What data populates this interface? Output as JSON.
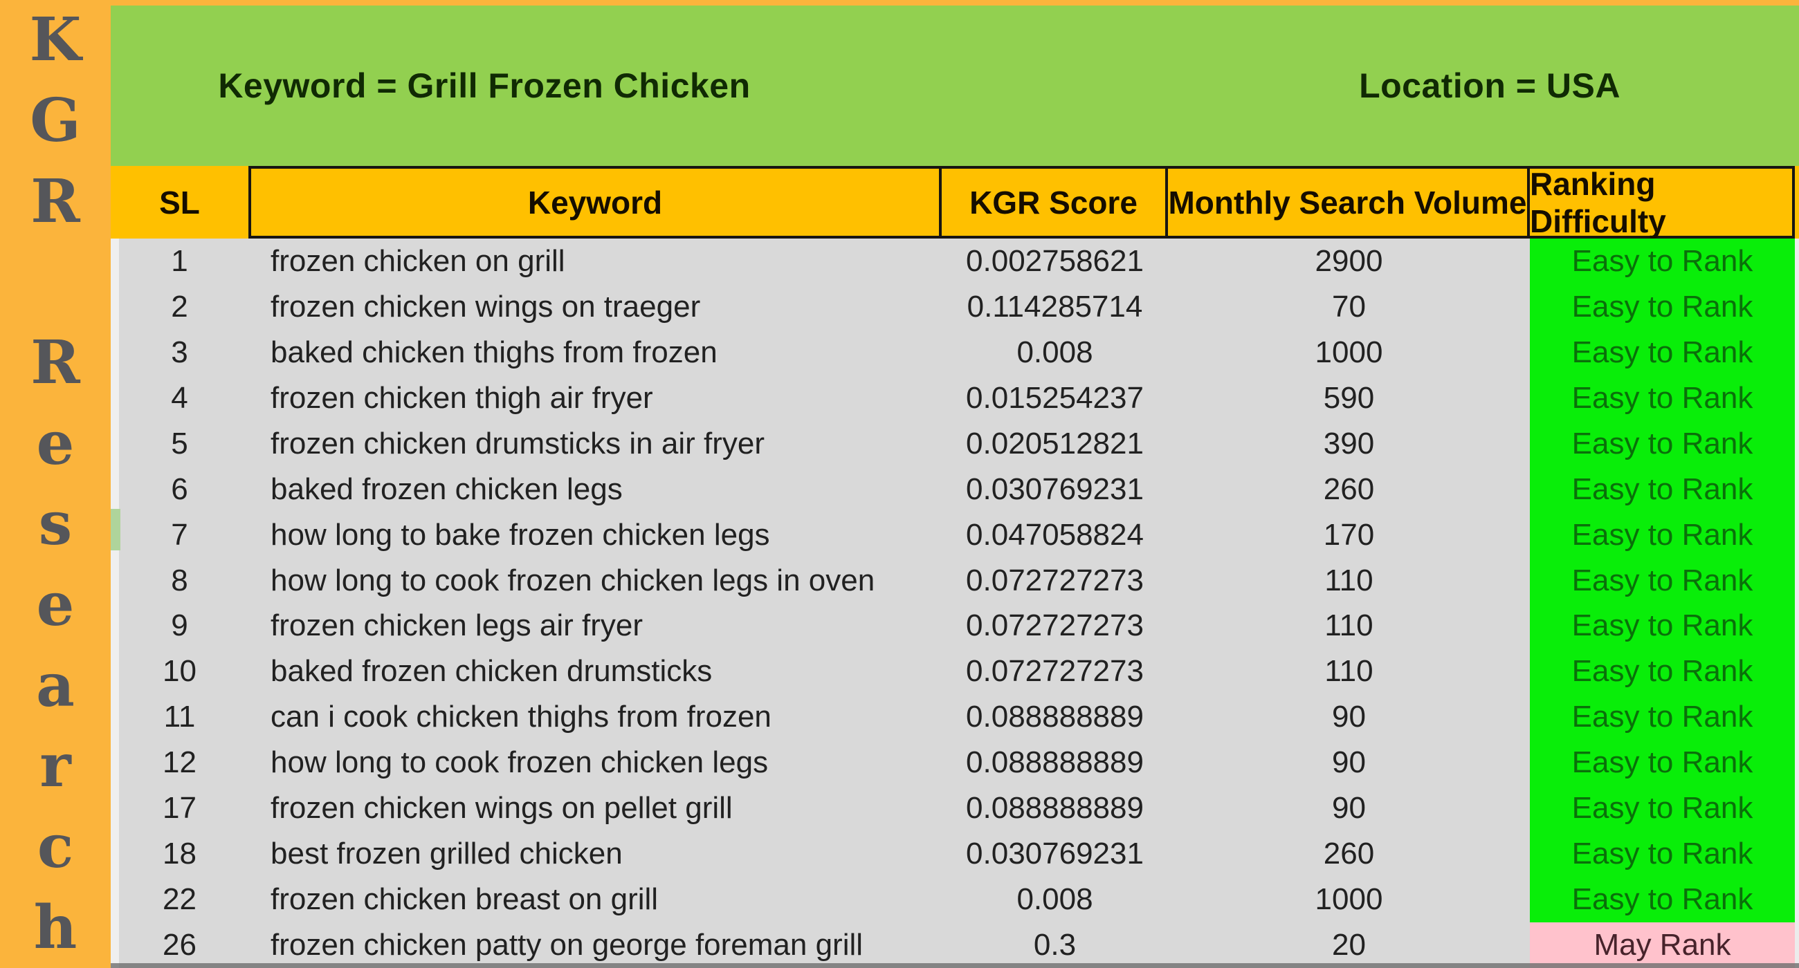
{
  "sidebar": {
    "letters": [
      "K",
      "G",
      "R",
      "",
      "R",
      "e",
      "s",
      "e",
      "a",
      "r",
      "c",
      "h"
    ]
  },
  "banner": {
    "keyword_label": "Keyword = Grill Frozen Chicken",
    "location_label": "Location = USA"
  },
  "table": {
    "columns": [
      "SL",
      "Keyword",
      "KGR Score",
      "Monthly Search Volume",
      "Ranking Difficulty"
    ],
    "rows": [
      {
        "sl": "1",
        "keyword": "frozen chicken on grill",
        "kgr": "0.002758621",
        "volume": "2900",
        "difficulty": "Easy to Rank"
      },
      {
        "sl": "2",
        "keyword": "frozen chicken wings on traeger",
        "kgr": "0.114285714",
        "volume": "70",
        "difficulty": "Easy to Rank"
      },
      {
        "sl": "3",
        "keyword": "baked chicken thighs from frozen",
        "kgr": "0.008",
        "volume": "1000",
        "difficulty": "Easy to Rank"
      },
      {
        "sl": "4",
        "keyword": "frozen chicken thigh air fryer",
        "kgr": "0.015254237",
        "volume": "590",
        "difficulty": "Easy to Rank"
      },
      {
        "sl": "5",
        "keyword": "frozen chicken drumsticks in air fryer",
        "kgr": "0.020512821",
        "volume": "390",
        "difficulty": "Easy to Rank"
      },
      {
        "sl": "6",
        "keyword": "baked frozen chicken legs",
        "kgr": "0.030769231",
        "volume": "260",
        "difficulty": "Easy to Rank"
      },
      {
        "sl": "7",
        "keyword": "how long to bake frozen chicken legs",
        "kgr": "0.047058824",
        "volume": "170",
        "difficulty": "Easy to Rank"
      },
      {
        "sl": "8",
        "keyword": "how long to cook frozen chicken legs in oven",
        "kgr": "0.072727273",
        "volume": "110",
        "difficulty": "Easy to Rank"
      },
      {
        "sl": "9",
        "keyword": "frozen chicken legs air fryer",
        "kgr": "0.072727273",
        "volume": "110",
        "difficulty": "Easy to Rank"
      },
      {
        "sl": "10",
        "keyword": "baked frozen chicken drumsticks",
        "kgr": "0.072727273",
        "volume": "110",
        "difficulty": "Easy to Rank"
      },
      {
        "sl": "11",
        "keyword": "can i cook chicken thighs from frozen",
        "kgr": "0.088888889",
        "volume": "90",
        "difficulty": "Easy to Rank"
      },
      {
        "sl": "12",
        "keyword": "how long to cook frozen chicken legs",
        "kgr": "0.088888889",
        "volume": "90",
        "difficulty": "Easy to Rank"
      },
      {
        "sl": "17",
        "keyword": "frozen chicken wings on pellet grill",
        "kgr": "0.088888889",
        "volume": "90",
        "difficulty": "Easy to Rank"
      },
      {
        "sl": "18",
        "keyword": "best frozen grilled chicken",
        "kgr": "0.030769231",
        "volume": "260",
        "difficulty": "Easy to Rank"
      },
      {
        "sl": "22",
        "keyword": "frozen chicken breast on grill",
        "kgr": "0.008",
        "volume": "1000",
        "difficulty": "Easy to Rank"
      },
      {
        "sl": "26",
        "keyword": "frozen chicken patty on george foreman grill",
        "kgr": "0.3",
        "volume": "20",
        "difficulty": "May Rank"
      }
    ]
  },
  "colors": {
    "sidebar_orange": "#FBB43C",
    "banner_green": "#92D050",
    "header_gold": "#FFC000",
    "row_gray": "#D9D9D9",
    "easy_green": "#09EE09",
    "may_pink": "#FFC2CC",
    "easy_text": "#0A700A",
    "may_text": "#47232B"
  }
}
